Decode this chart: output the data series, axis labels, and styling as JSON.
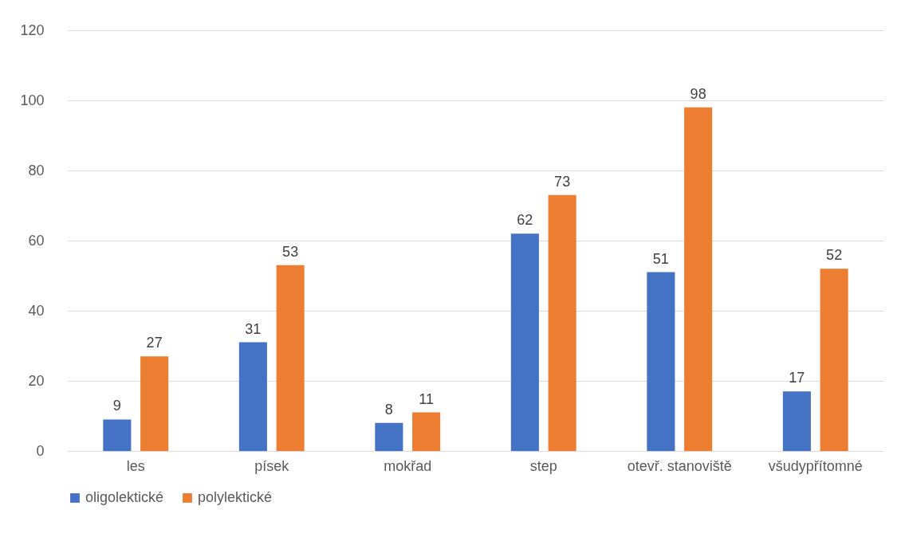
{
  "chart_data": {
    "type": "bar",
    "categories": [
      "les",
      "písek",
      "mokřad",
      "step",
      "otevř. stanoviště",
      "všudypřítomné"
    ],
    "series": [
      {
        "name": "oligolektické",
        "color": "#4472c4",
        "values": [
          9,
          31,
          8,
          62,
          51,
          17
        ]
      },
      {
        "name": "polylektické",
        "color": "#ed7d31",
        "values": [
          27,
          53,
          11,
          73,
          98,
          52
        ]
      }
    ],
    "ylim": [
      0,
      120
    ],
    "yticks": [
      0,
      20,
      40,
      60,
      80,
      100,
      120
    ],
    "grid": "y",
    "legend": "bottom",
    "data_labels": true
  }
}
